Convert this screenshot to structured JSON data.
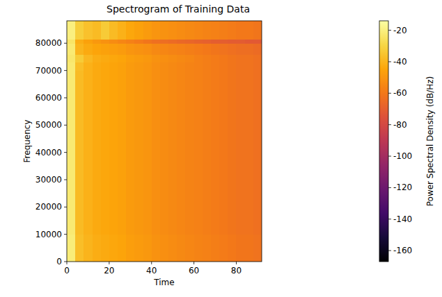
{
  "chart_data": {
    "type": "heatmap",
    "title": "Spectrogram of Training Data",
    "x_label": "Time",
    "y_label": "Frequency",
    "xlim": [
      0,
      92
    ],
    "ylim": [
      0,
      88200
    ],
    "xticks": [
      0,
      20,
      40,
      60,
      80
    ],
    "yticks": [
      0,
      10000,
      20000,
      30000,
      40000,
      50000,
      60000,
      70000,
      80000
    ],
    "x_bins": [
      0,
      4,
      8,
      12,
      16,
      20,
      24,
      28,
      32,
      36,
      40,
      44,
      48,
      52,
      56,
      60,
      64,
      68,
      72,
      76,
      80,
      84,
      88,
      92
    ],
    "y_bins": [
      0,
      10000,
      20000,
      30000,
      40000,
      50000,
      60000,
      70000,
      73000,
      76000,
      80000,
      81500,
      88200
    ],
    "z": [
      [
        -21,
        -37,
        -40,
        -42,
        -43,
        -44,
        -45,
        -47,
        -48,
        -49,
        -51,
        -52,
        -53,
        -54,
        -55,
        -56,
        -57,
        -58,
        -59,
        -60,
        -61,
        -61,
        -62
      ],
      [
        -22,
        -38,
        -41,
        -43,
        -44,
        -45,
        -46,
        -48,
        -49,
        -50,
        -52,
        -53,
        -54,
        -55,
        -56,
        -57,
        -58,
        -59,
        -60,
        -61,
        -62,
        -62,
        -63
      ],
      [
        -22,
        -38,
        -41,
        -43,
        -44,
        -45,
        -46,
        -48,
        -49,
        -50,
        -52,
        -53,
        -54,
        -55,
        -56,
        -57,
        -58,
        -59,
        -60,
        -61,
        -62,
        -62,
        -63
      ],
      [
        -22,
        -38,
        -41,
        -43,
        -44,
        -45,
        -46,
        -48,
        -49,
        -50,
        -52,
        -53,
        -54,
        -55,
        -56,
        -57,
        -58,
        -59,
        -60,
        -61,
        -62,
        -62,
        -63
      ],
      [
        -22,
        -38,
        -41,
        -43,
        -44,
        -45,
        -46,
        -48,
        -49,
        -50,
        -52,
        -53,
        -54,
        -55,
        -56,
        -57,
        -58,
        -59,
        -60,
        -61,
        -62,
        -62,
        -63
      ],
      [
        -22,
        -38,
        -41,
        -43,
        -44,
        -45,
        -46,
        -48,
        -49,
        -50,
        -52,
        -53,
        -54,
        -55,
        -56,
        -57,
        -58,
        -59,
        -60,
        -61,
        -62,
        -62,
        -63
      ],
      [
        -22,
        -38,
        -41,
        -43,
        -44,
        -45,
        -46,
        -48,
        -49,
        -50,
        -52,
        -53,
        -54,
        -55,
        -56,
        -57,
        -58,
        -59,
        -60,
        -61,
        -62,
        -62,
        -63
      ],
      [
        -22,
        -37,
        -41,
        -43,
        -44,
        -45,
        -46,
        -48,
        -49,
        -50,
        -52,
        -53,
        -54,
        -55,
        -56,
        -57,
        -58,
        -59,
        -60,
        -61,
        -62,
        -62,
        -63
      ],
      [
        -23,
        -33,
        -39,
        -42,
        -43,
        -44,
        -45,
        -47,
        -48,
        -49,
        -51,
        -52,
        -53,
        -54,
        -55,
        -57,
        -58,
        -59,
        -60,
        -61,
        -62,
        -62,
        -63
      ],
      [
        -22,
        -40,
        -43,
        -45,
        -46,
        -47,
        -48,
        -50,
        -51,
        -52,
        -54,
        -55,
        -56,
        -57,
        -58,
        -59,
        -60,
        -61,
        -62,
        -63,
        -64,
        -64,
        -65
      ],
      [
        -24,
        -42,
        -46,
        -49,
        -51,
        -53,
        -55,
        -57,
        -59,
        -61,
        -63,
        -64,
        -65,
        -66,
        -67,
        -68,
        -69,
        -70,
        -70,
        -71,
        -71,
        -72,
        -72
      ],
      [
        -20,
        -32,
        -36,
        -38,
        -33,
        -38,
        -41,
        -44,
        -46,
        -48,
        -50,
        -51,
        -52,
        -53,
        -54,
        -55,
        -56,
        -57,
        -58,
        -59,
        -60,
        -60,
        -61
      ]
    ],
    "colorbar": {
      "label": "Power Spectral Density (dB/Hz)",
      "range": [
        -167,
        -14
      ],
      "ticks": [
        -20,
        -40,
        -60,
        -80,
        -100,
        -120,
        -140,
        -160
      ]
    }
  }
}
